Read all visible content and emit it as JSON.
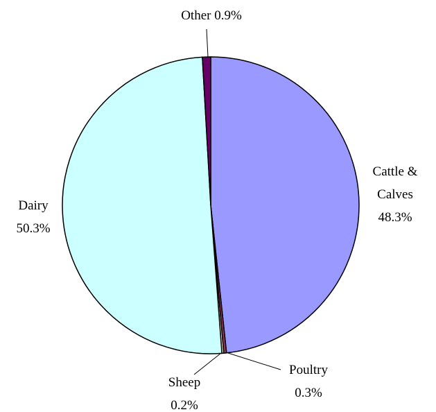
{
  "chart_data": {
    "type": "pie",
    "categories": [
      "Cattle & Calves",
      "Poultry",
      "Sheep",
      "Dairy",
      "Other"
    ],
    "values": [
      48.3,
      0.3,
      0.2,
      50.3,
      0.9
    ],
    "value_labels": [
      "48.3%",
      "0.3%",
      "0.2%",
      "50.3%",
      "0.9%"
    ],
    "colors": [
      "#9999ff",
      "#993366",
      "#ffffcc",
      "#ccffff",
      "#660066"
    ]
  }
}
